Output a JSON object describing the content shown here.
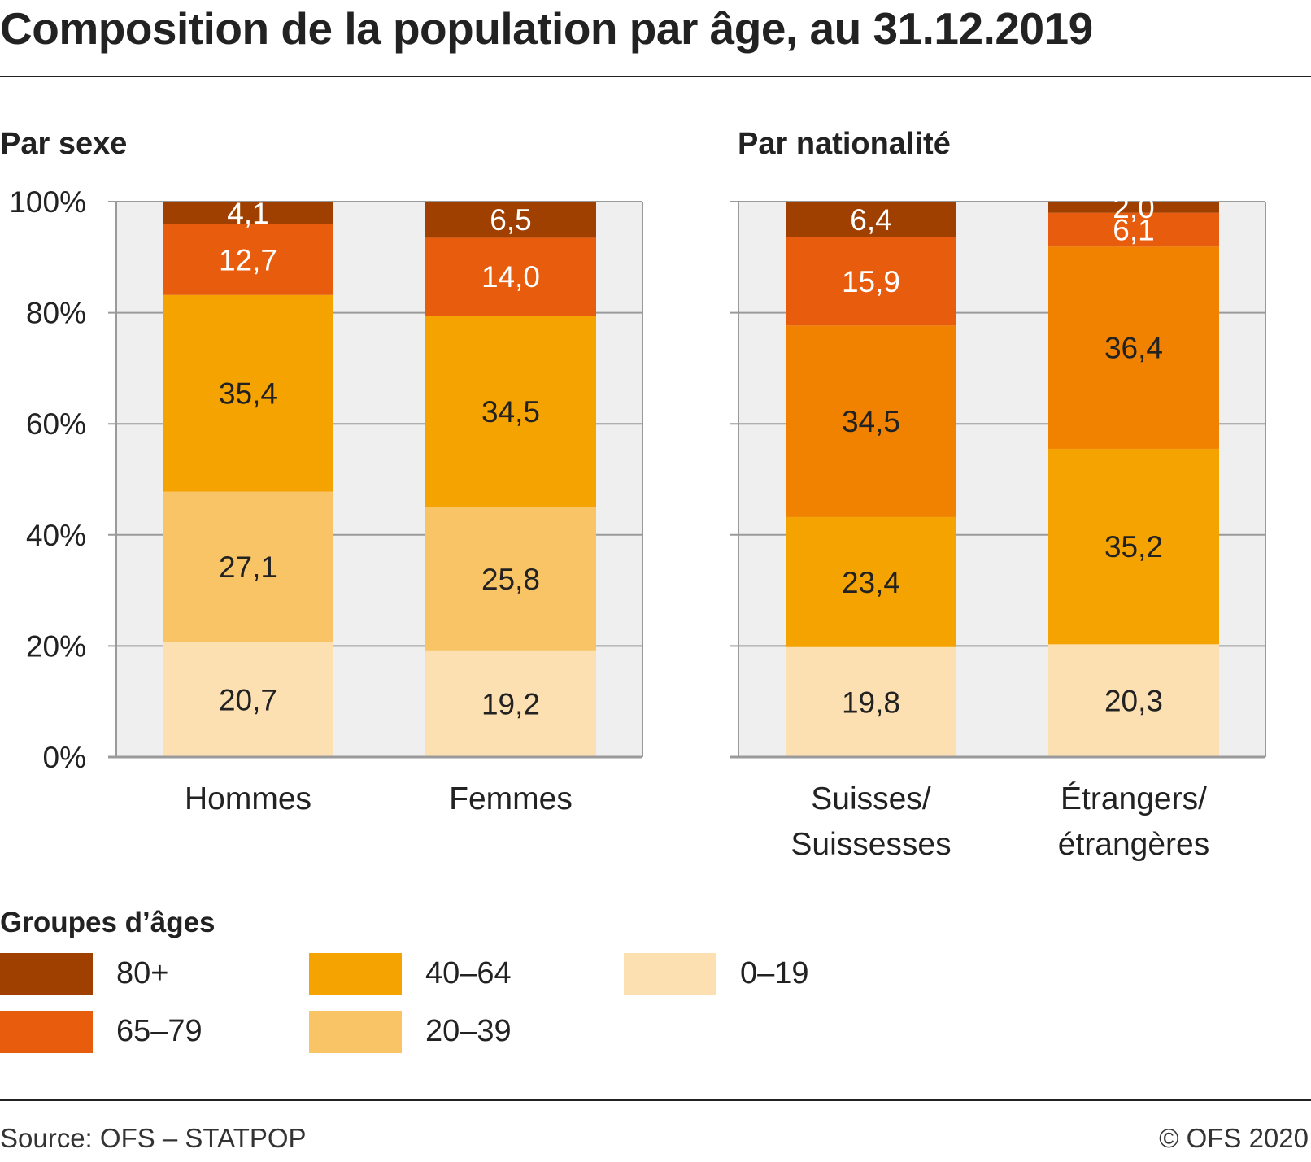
{
  "title": "Composition de la population par âge, au 31.12.2019",
  "source": "Source: OFS – STATPOP",
  "copyright": "© OFS 2020",
  "legend": {
    "title": "Groupes d’âges",
    "items": [
      {
        "label": "80+",
        "color": "#a04000"
      },
      {
        "label": "65–79",
        "color": "#e85c0d"
      },
      {
        "label": "40–64",
        "color": "#f5a300"
      },
      {
        "label": "20–39",
        "color": "#f9c465"
      },
      {
        "label": "0–19",
        "color": "#fde0b1"
      }
    ]
  },
  "chart_data": [
    {
      "type": "bar",
      "stacked": true,
      "title": "Par sexe",
      "ylim": [
        0,
        100
      ],
      "yticks": [
        "0%",
        "20%",
        "40%",
        "60%",
        "80%",
        "100%"
      ],
      "categories": [
        "Hommes",
        "Femmes"
      ],
      "series": [
        {
          "name": "0–19",
          "color": "#fde0b1",
          "values": [
            20.7,
            19.2
          ],
          "labels": [
            "20,7",
            "19,2"
          ]
        },
        {
          "name": "20–39",
          "color": "#f9c465",
          "values": [
            27.1,
            25.8
          ],
          "labels": [
            "27,1",
            "25,8"
          ]
        },
        {
          "name": "40–64",
          "color": "#f5a300",
          "values": [
            35.4,
            34.5
          ],
          "labels": [
            "35,4",
            "34,5"
          ]
        },
        {
          "name": "65–79",
          "color": "#e85c0d",
          "values": [
            12.7,
            14.0
          ],
          "labels": [
            "12,7",
            "14,0"
          ]
        },
        {
          "name": "80+",
          "color": "#a04000",
          "values": [
            4.1,
            6.5
          ],
          "labels": [
            "4,1",
            "6,5"
          ]
        }
      ]
    },
    {
      "type": "bar",
      "stacked": true,
      "title": "Par nationalité",
      "ylim": [
        0,
        100
      ],
      "categories": [
        "Suisses/\nSuissesses",
        "Étrangers/\nétrangères"
      ],
      "series": [
        {
          "name": "0–19",
          "color": "#fde0b1",
          "values": [
            19.8,
            20.3
          ],
          "labels": [
            "19,8",
            "20,3"
          ]
        },
        {
          "name": "20–39",
          "color": "#f5a300",
          "values": [
            23.4,
            35.2
          ],
          "labels": [
            "23,4",
            "35,2"
          ]
        },
        {
          "name": "40–64",
          "color": "#f08200",
          "values": [
            34.5,
            36.4
          ],
          "labels": [
            "34,5",
            "36,4"
          ]
        },
        {
          "name": "65–79",
          "color": "#e85c0d",
          "values": [
            15.9,
            6.1
          ],
          "labels": [
            "15,9",
            "6,1"
          ]
        },
        {
          "name": "80+",
          "color": "#a04000",
          "values": [
            6.4,
            2.0
          ],
          "labels": [
            "6,4",
            "2,0"
          ]
        }
      ]
    }
  ]
}
